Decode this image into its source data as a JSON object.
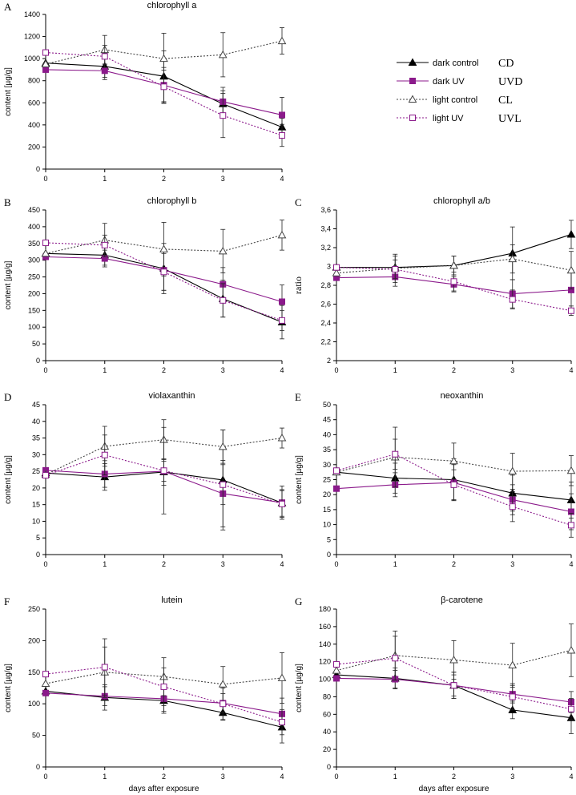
{
  "legend": {
    "items": [
      {
        "key": "CD",
        "label": "dark control",
        "abbr": "CD"
      },
      {
        "key": "UVD",
        "label": "dark UV",
        "abbr": "UVD"
      },
      {
        "key": "CL",
        "label": "light control",
        "abbr": "CL"
      },
      {
        "key": "UVL",
        "label": "light UV",
        "abbr": "UVL"
      }
    ]
  },
  "colors": {
    "dark": "#000000",
    "uv": "#8b1a8b",
    "light_ctrl": "#444444",
    "light_uv": "#8b1a8b"
  },
  "chart_data": [
    {
      "id": "A",
      "letter": "A",
      "type": "line",
      "title": "chlorophyll a",
      "ylabel": "content [µg/g]",
      "xlabel": "",
      "ylim": [
        0,
        1400
      ],
      "yticks": [
        0,
        200,
        400,
        600,
        800,
        1000,
        1200,
        1400
      ],
      "ytick_labels": [
        "0",
        "200",
        "400",
        "600",
        "800",
        "1000",
        "1200",
        "1400"
      ],
      "x": [
        0,
        1,
        2,
        3,
        4
      ],
      "xtick_labels": [
        "0",
        "1",
        "2",
        "3",
        "4"
      ],
      "series": [
        {
          "key": "CD",
          "values": [
            960,
            930,
            840,
            590,
            380
          ],
          "errors": [
            0,
            120,
            230,
            120,
            80
          ]
        },
        {
          "key": "UVD",
          "values": [
            900,
            890,
            760,
            610,
            490
          ],
          "errors": [
            0,
            60,
            160,
            130,
            160
          ]
        },
        {
          "key": "CL",
          "values": [
            950,
            1080,
            1000,
            1035,
            1160
          ],
          "errors": [
            0,
            130,
            230,
            200,
            120
          ]
        },
        {
          "key": "UVL",
          "values": [
            1055,
            1020,
            745,
            485,
            305
          ],
          "errors": [
            0,
            100,
            150,
            200,
            100
          ]
        }
      ]
    },
    {
      "id": "B",
      "letter": "B",
      "type": "line",
      "title": "chlorophyll b",
      "ylabel": "content [µg/g]",
      "xlabel": "",
      "ylim": [
        0,
        450
      ],
      "yticks": [
        0,
        50,
        100,
        150,
        200,
        250,
        300,
        350,
        400,
        450
      ],
      "ytick_labels": [
        "0",
        "50",
        "100",
        "150",
        "200",
        "250",
        "300",
        "350",
        "400",
        "450"
      ],
      "x": [
        0,
        1,
        2,
        3,
        4
      ],
      "xtick_labels": [
        "0",
        "1",
        "2",
        "3",
        "4"
      ],
      "series": [
        {
          "key": "CD",
          "values": [
            320,
            315,
            275,
            185,
            115
          ],
          "errors": [
            0,
            30,
            75,
            55,
            50
          ]
        },
        {
          "key": "UVD",
          "values": [
            310,
            305,
            270,
            228,
            176
          ],
          "errors": [
            0,
            25,
            60,
            50,
            50
          ]
        },
        {
          "key": "CL",
          "values": [
            320,
            360,
            333,
            327,
            375
          ],
          "errors": [
            0,
            50,
            80,
            65,
            45
          ]
        },
        {
          "key": "UVL",
          "values": [
            352,
            345,
            265,
            180,
            120
          ],
          "errors": [
            0,
            30,
            55,
            50,
            30
          ]
        }
      ]
    },
    {
      "id": "C",
      "letter": "C",
      "type": "line",
      "title": "chlorophyll a/b",
      "ylabel": "ratio",
      "xlabel": "",
      "ylim": [
        2,
        3.6
      ],
      "yticks": [
        2,
        2.2,
        2.4,
        2.6,
        2.8,
        3,
        3.2,
        3.4,
        3.6
      ],
      "ytick_labels": [
        "2",
        "2,2",
        "2,4",
        "2,6",
        "2,8",
        "3",
        "3,2",
        "3,4",
        "3,6"
      ],
      "x": [
        0,
        1,
        2,
        3,
        4
      ],
      "xtick_labels": [
        "0",
        "1",
        "2",
        "3",
        "4"
      ],
      "series": [
        {
          "key": "CD",
          "values": [
            2.99,
            2.99,
            3.01,
            3.14,
            3.34
          ],
          "errors": [
            0,
            0.12,
            0.1,
            0.28,
            0.15
          ]
        },
        {
          "key": "UVD",
          "values": [
            2.88,
            2.89,
            2.81,
            2.71,
            2.75
          ],
          "errors": [
            0,
            0.1,
            0.08,
            0.15,
            0.2
          ]
        },
        {
          "key": "CL",
          "values": [
            2.93,
            2.98,
            3.01,
            3.08,
            2.96
          ],
          "errors": [
            0,
            0.15,
            0.1,
            0.15,
            0.2
          ]
        },
        {
          "key": "UVL",
          "values": [
            2.99,
            2.97,
            2.84,
            2.65,
            2.53
          ],
          "errors": [
            0,
            0.1,
            0.1,
            0.1,
            0.05
          ]
        }
      ]
    },
    {
      "id": "D",
      "letter": "D",
      "type": "line",
      "title": "violaxanthin",
      "ylabel": "content [µg/g]",
      "xlabel": "",
      "ylim": [
        0,
        45
      ],
      "yticks": [
        0,
        5,
        10,
        15,
        20,
        25,
        30,
        35,
        40,
        45
      ],
      "ytick_labels": [
        "0",
        "5",
        "10",
        "15",
        "20",
        "25",
        "30",
        "35",
        "40",
        "45"
      ],
      "x": [
        0,
        1,
        2,
        3,
        4
      ],
      "xtick_labels": [
        "0",
        "1",
        "2",
        "3",
        "4"
      ],
      "series": [
        {
          "key": "CD",
          "values": [
            24.5,
            23.3,
            24.8,
            22.4,
            15.5
          ],
          "errors": [
            0,
            4,
            4,
            15,
            4
          ]
        },
        {
          "key": "UVD",
          "values": [
            25.3,
            24.2,
            25.0,
            18.3,
            15.6
          ],
          "errors": [
            0,
            4,
            3,
            10,
            5
          ]
        },
        {
          "key": "CL",
          "values": [
            24.0,
            32.5,
            34.5,
            32.4,
            35.0
          ],
          "errors": [
            0,
            6,
            6,
            5,
            3
          ]
        },
        {
          "key": "UVL",
          "values": [
            23.8,
            29.9,
            25.2,
            21.0,
            15.2
          ],
          "errors": [
            0,
            6,
            13,
            6,
            4
          ]
        }
      ]
    },
    {
      "id": "E",
      "letter": "E",
      "type": "line",
      "title": "neoxanthin",
      "ylabel": "content [µg/g]",
      "xlabel": "",
      "ylim": [
        0,
        50
      ],
      "yticks": [
        0,
        5,
        10,
        15,
        20,
        25,
        30,
        35,
        40,
        45,
        50
      ],
      "ytick_labels": [
        "0",
        "5",
        "10",
        "15",
        "20",
        "25",
        "30",
        "35",
        "40",
        "45",
        "50"
      ],
      "x": [
        0,
        1,
        2,
        3,
        4
      ],
      "xtick_labels": [
        "0",
        "1",
        "2",
        "3",
        "4"
      ],
      "series": [
        {
          "key": "CD",
          "values": [
            27.5,
            25.5,
            25.0,
            20.5,
            18.2
          ],
          "errors": [
            0,
            5,
            7,
            6,
            6
          ]
        },
        {
          "key": "UVD",
          "values": [
            22.0,
            23.3,
            24.0,
            18.3,
            14.3
          ],
          "errors": [
            0,
            4,
            6,
            5,
            6
          ]
        },
        {
          "key": "CL",
          "values": [
            27.5,
            32.5,
            31.2,
            27.8,
            28.0
          ],
          "errors": [
            0,
            10,
            6,
            6,
            5
          ]
        },
        {
          "key": "UVL",
          "values": [
            28.0,
            33.5,
            23.3,
            16.0,
            9.8
          ],
          "errors": [
            0,
            5,
            5,
            5,
            4
          ]
        }
      ]
    },
    {
      "id": "F",
      "letter": "F",
      "type": "line",
      "title": "lutein",
      "ylabel": "content [µg/g]",
      "xlabel": "days after exposure",
      "ylim": [
        0,
        250
      ],
      "yticks": [
        0,
        50,
        100,
        150,
        200,
        250
      ],
      "ytick_labels": [
        "0",
        "50",
        "100",
        "150",
        "200",
        "250"
      ],
      "x": [
        0,
        1,
        2,
        3,
        4
      ],
      "xtick_labels": [
        "0",
        "1",
        "2",
        "3",
        "4"
      ],
      "series": [
        {
          "key": "CD",
          "values": [
            120,
            110,
            105,
            86,
            63
          ],
          "errors": [
            0,
            20,
            20,
            12,
            25
          ]
        },
        {
          "key": "UVD",
          "values": [
            117,
            112,
            108,
            101,
            84
          ],
          "errors": [
            0,
            15,
            20,
            15,
            25
          ]
        },
        {
          "key": "CL",
          "values": [
            132,
            150,
            143,
            131,
            141
          ],
          "errors": [
            0,
            40,
            30,
            28,
            40
          ]
        },
        {
          "key": "UVL",
          "values": [
            147,
            158,
            127,
            100,
            71
          ],
          "errors": [
            0,
            45,
            30,
            25,
            20
          ]
        }
      ]
    },
    {
      "id": "G",
      "letter": "G",
      "type": "line",
      "title": "β-carotene",
      "ylabel": "content [µg/g]",
      "xlabel": "days after exposure",
      "ylim": [
        0,
        180
      ],
      "yticks": [
        0,
        20,
        40,
        60,
        80,
        100,
        120,
        140,
        160,
        180
      ],
      "ytick_labels": [
        "0",
        "20",
        "40",
        "60",
        "80",
        "100",
        "120",
        "140",
        "160",
        "180"
      ],
      "x": [
        0,
        1,
        2,
        3,
        4
      ],
      "xtick_labels": [
        "0",
        "1",
        "2",
        "3",
        "4"
      ],
      "series": [
        {
          "key": "CD",
          "values": [
            105,
            101,
            93,
            65,
            56
          ],
          "errors": [
            0,
            12,
            15,
            10,
            18
          ]
        },
        {
          "key": "UVD",
          "values": [
            101,
            100,
            93,
            83,
            74
          ],
          "errors": [
            0,
            10,
            12,
            10,
            12
          ]
        },
        {
          "key": "CL",
          "values": [
            110,
            127,
            122,
            116,
            133
          ],
          "errors": [
            0,
            28,
            22,
            25,
            30
          ]
        },
        {
          "key": "UVL",
          "values": [
            117,
            124,
            93,
            80,
            66
          ],
          "errors": [
            0,
            25,
            15,
            15,
            12
          ]
        }
      ]
    }
  ]
}
